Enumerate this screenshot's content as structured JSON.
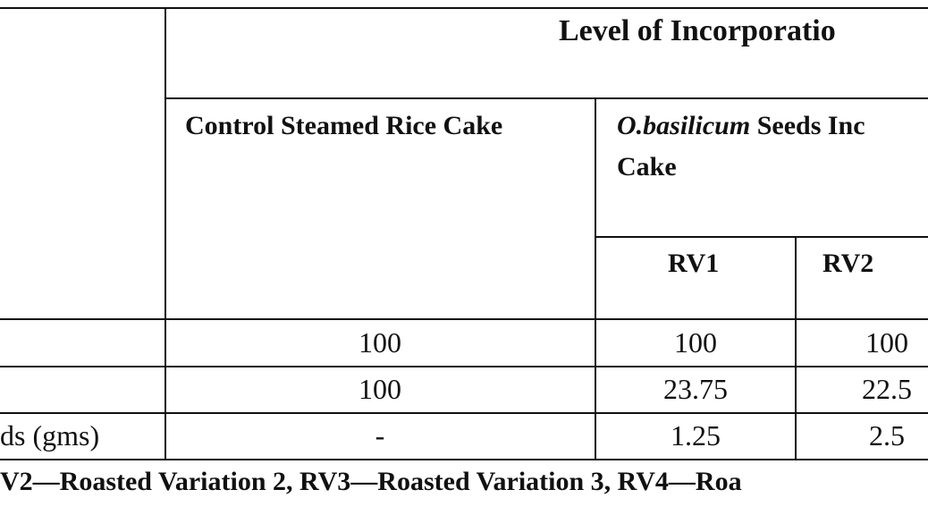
{
  "header": {
    "title": "Level of Incorporatio",
    "control": "Control Steamed Rice Cake",
    "variation": {
      "italic": "O.basilicum",
      "text": "Seeds Inc",
      "line2": "Cake"
    },
    "subcolumns": [
      "RV1",
      "RV2"
    ]
  },
  "table": {
    "rows": [
      [
        "100",
        "100",
        "100"
      ],
      [
        "100",
        "23.75",
        "22.5"
      ],
      [
        "ds (gms)",
        "-",
        "1.25",
        "2.5"
      ]
    ]
  },
  "footnote": "V2—Roasted Variation 2, RV3—Roasted Variation 3, RV4—Roa"
}
